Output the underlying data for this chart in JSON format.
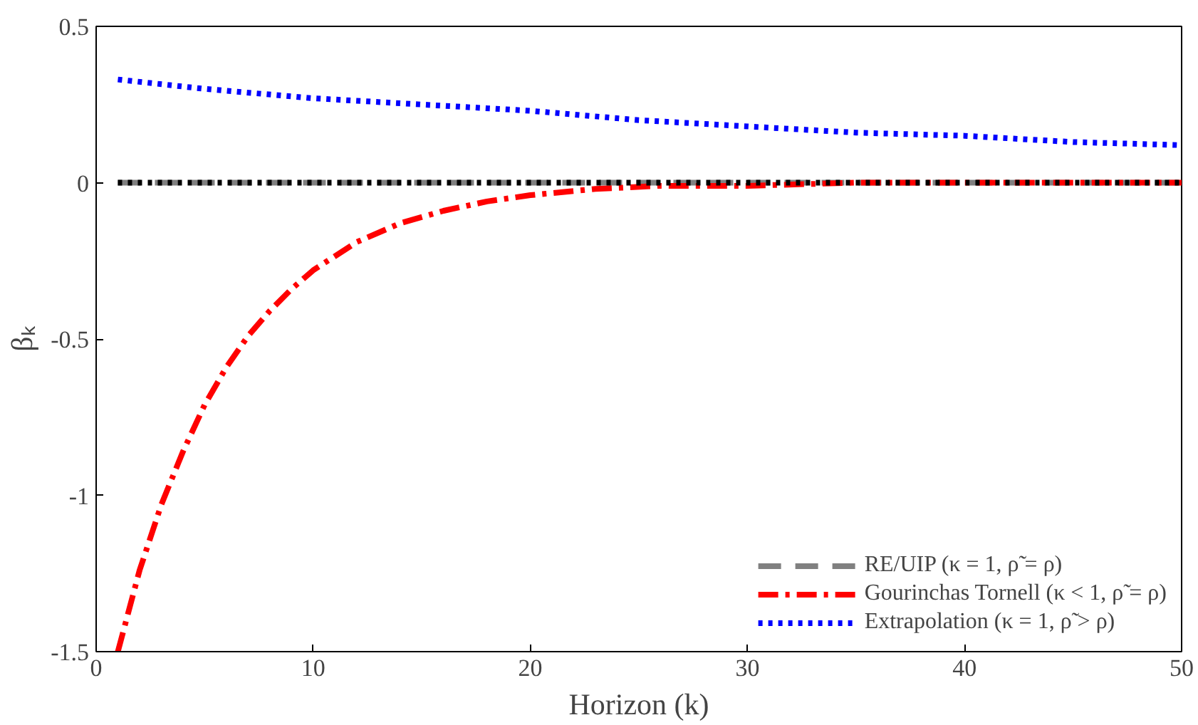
{
  "chart_data": {
    "type": "line",
    "xlabel": "Horizon (k)",
    "ylabel": "βₖ",
    "xlim": [
      0,
      50
    ],
    "ylim": [
      -1.5,
      0.5
    ],
    "xticks": [
      0,
      10,
      20,
      30,
      40,
      50
    ],
    "yticks": [
      -1.5,
      -1,
      -0.5,
      0,
      0.5
    ],
    "grid": false,
    "legend": "bottom right",
    "marker": "none",
    "series": [
      {
        "name": "RE/UIP (κ = 1, ρ̃ = ρ)",
        "color": "#808080",
        "line_style": "dashed",
        "x": [
          1,
          50
        ],
        "values": [
          0,
          0
        ]
      },
      {
        "name": "Gourinchas Tornell (κ < 1, ρ̃ = ρ)",
        "color": "#ff0000",
        "line_style": "dashdot",
        "x": [
          1,
          2,
          3,
          4,
          5,
          6,
          7,
          8,
          9,
          10,
          12,
          14,
          16,
          18,
          20,
          23,
          26,
          30,
          35,
          40,
          45,
          50
        ],
        "values": [
          -1.5,
          -1.24,
          -1.03,
          -0.86,
          -0.71,
          -0.59,
          -0.49,
          -0.41,
          -0.34,
          -0.28,
          -0.19,
          -0.13,
          -0.09,
          -0.06,
          -0.04,
          -0.02,
          -0.01,
          -0.01,
          0,
          0,
          0,
          0
        ]
      },
      {
        "name": "Extrapolation (κ = 1, ρ̃ > ρ)",
        "color": "#0000ff",
        "line_style": "dotted",
        "x": [
          1,
          5,
          10,
          15,
          20,
          25,
          30,
          35,
          40,
          45,
          50
        ],
        "values": [
          0.33,
          0.3,
          0.27,
          0.25,
          0.23,
          0.2,
          0.18,
          0.16,
          0.15,
          0.13,
          0.12
        ]
      },
      {
        "color": "#000000",
        "line_style": "dotted",
        "x": [
          1,
          50
        ],
        "values": [
          0,
          0
        ]
      }
    ]
  }
}
